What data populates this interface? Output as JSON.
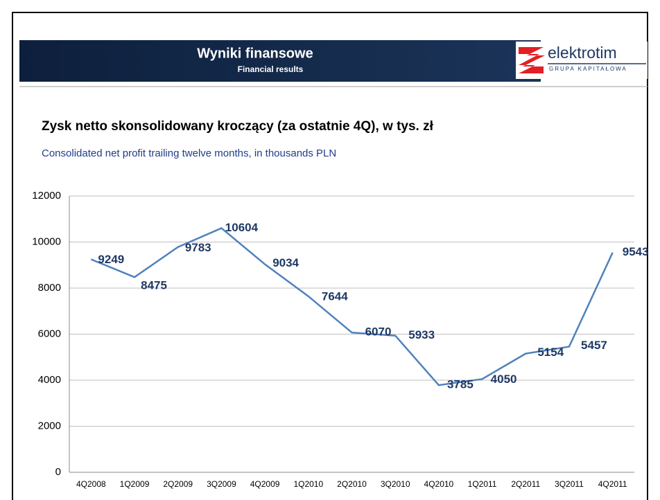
{
  "header": {
    "title": "Wyniki finansowe",
    "subtitle": "Financial results",
    "logo": "elektrotim",
    "logo_tagline": "GRUPA KAPITAŁOWA"
  },
  "chart_data": {
    "type": "line",
    "title": "Zysk netto skonsolidowany kroczący (za ostatnie 4Q), w tys. zł",
    "subtitle": "Consolidated net profit trailing twelve months, in thousands PLN",
    "categories": [
      "4Q2008",
      "1Q2009",
      "2Q2009",
      "3Q2009",
      "4Q2009",
      "1Q2010",
      "2Q2010",
      "3Q2010",
      "4Q2010",
      "1Q2011",
      "2Q2011",
      "3Q2011",
      "4Q2011"
    ],
    "series": [
      {
        "name": "Zysk netto",
        "color": "#4f81bd",
        "values": [
          9249,
          8475,
          9783,
          10604,
          9034,
          7644,
          6070,
          5933,
          3785,
          4050,
          5154,
          5457,
          9543
        ]
      }
    ],
    "ylim": [
      0,
      12000
    ],
    "yticks": [
      0,
      2000,
      4000,
      6000,
      8000,
      10000,
      12000
    ],
    "grid": true
  }
}
